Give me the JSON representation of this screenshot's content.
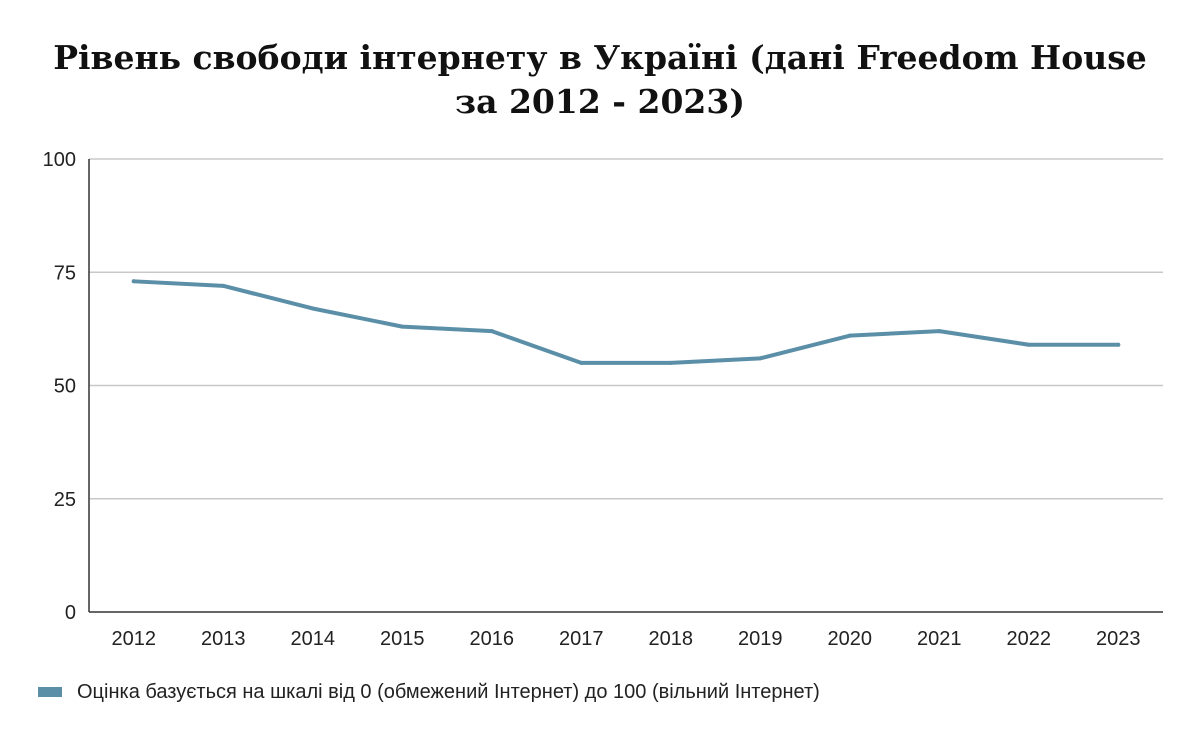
{
  "chart_data": {
    "type": "line",
    "title_lines": [
      "Рівень свободи інтернету в Україні (дані Freedom House",
      "за 2012 - 2023)"
    ],
    "x": [
      "2012",
      "2013",
      "2014",
      "2015",
      "2016",
      "2017",
      "2018",
      "2019",
      "2020",
      "2021",
      "2022",
      "2023"
    ],
    "series": [
      {
        "name": "Оцінка базується на шкалі від 0 (обмежений Інтернет) до 100 (вільний Інтернет)",
        "values": [
          73,
          72,
          67,
          63,
          62,
          55,
          55,
          56,
          61,
          62,
          59,
          59
        ],
        "color": "#5b8fa8"
      }
    ],
    "ylim": [
      0,
      100
    ],
    "yticks": [
      0,
      25,
      50,
      75,
      100
    ],
    "xlabel": "",
    "ylabel": "",
    "grid": true,
    "legend_position": "bottom-left"
  }
}
